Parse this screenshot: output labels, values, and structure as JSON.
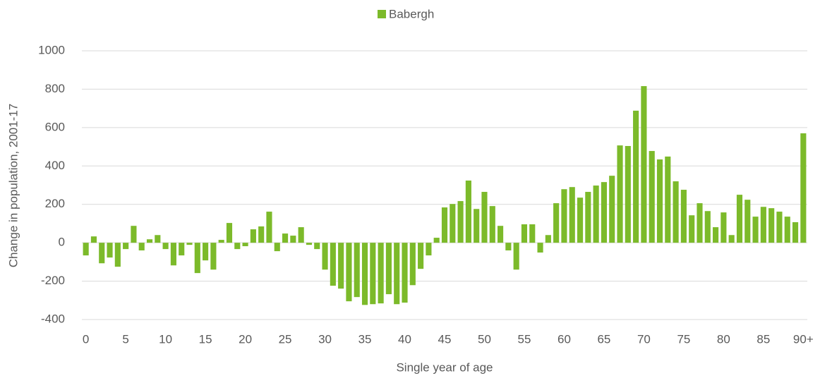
{
  "chart_data": {
    "type": "bar",
    "x_label": "Single year of age",
    "y_label": "Change in population, 2001-17",
    "categories": [
      "0",
      null,
      null,
      null,
      null,
      "5",
      null,
      null,
      null,
      null,
      "10",
      null,
      null,
      null,
      null,
      "15",
      null,
      null,
      null,
      null,
      "20",
      null,
      null,
      null,
      null,
      "25",
      null,
      null,
      null,
      null,
      "30",
      null,
      null,
      null,
      null,
      "35",
      null,
      null,
      null,
      null,
      "40",
      null,
      null,
      null,
      null,
      "45",
      null,
      null,
      null,
      null,
      "50",
      null,
      null,
      null,
      null,
      "55",
      null,
      null,
      null,
      null,
      "60",
      null,
      null,
      null,
      null,
      "65",
      null,
      null,
      null,
      null,
      "70",
      null,
      null,
      null,
      null,
      "75",
      null,
      null,
      null,
      null,
      "80",
      null,
      null,
      null,
      null,
      "85",
      null,
      null,
      null,
      null,
      "90+"
    ],
    "series": [
      {
        "name": "Babergh",
        "color": "#7cba2a",
        "values": [
          -66,
          33,
          -107,
          -77,
          -125,
          -33,
          88,
          -40,
          18,
          40,
          -33,
          -118,
          -66,
          -11,
          -158,
          -92,
          -140,
          15,
          103,
          -33,
          -18,
          70,
          85,
          162,
          -44,
          48,
          37,
          81,
          -11,
          -33,
          -140,
          -224,
          -239,
          -305,
          -283,
          -324,
          -320,
          -316,
          -268,
          -320,
          -312,
          -221,
          -136,
          -66,
          26,
          184,
          202,
          217,
          324,
          176,
          265,
          191,
          88,
          -40,
          -140,
          96,
          96,
          -51,
          40,
          206,
          279,
          290,
          235,
          265,
          298,
          316,
          349,
          507,
          504,
          688,
          816,
          478,
          434,
          449,
          320,
          276,
          143,
          206,
          165,
          81,
          158,
          40,
          250,
          224,
          136,
          187,
          180,
          162,
          136,
          107,
          570
        ]
      }
    ],
    "ylim": [
      -400,
      1000
    ],
    "yticks": [
      -400,
      -200,
      0,
      200,
      400,
      600,
      800,
      1000
    ],
    "grid": true,
    "legend": "top"
  }
}
